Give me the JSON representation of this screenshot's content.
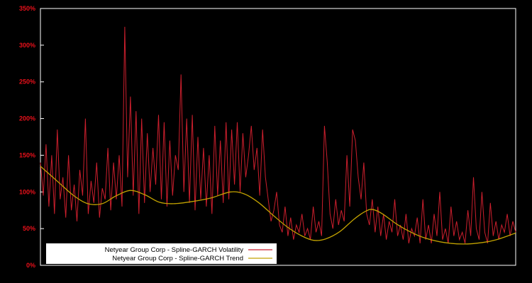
{
  "chart": {
    "background": "#000000",
    "frame_color": "#ffffff",
    "label_color": "#e8101a",
    "legend": {
      "background": "#ffffff",
      "items": [
        {
          "label": "Netyear Group Corp - Spline-GARCH Volatility",
          "color": "#cc1f2d"
        },
        {
          "label": "Netyear Group Corp - Spline-GARCH Trend",
          "color": "#c2a200"
        }
      ]
    }
  },
  "chart_data": {
    "type": "line",
    "title": "",
    "xlabel": "",
    "ylabel": "",
    "ylim": [
      0,
      350
    ],
    "grid": false,
    "legend_position": "bottom-left",
    "yticks": [
      {
        "value": 0,
        "label": "0%"
      },
      {
        "value": 50,
        "label": "50%"
      },
      {
        "value": 100,
        "label": "100%"
      },
      {
        "value": 150,
        "label": "150%"
      },
      {
        "value": 200,
        "label": "200%"
      },
      {
        "value": 250,
        "label": "250%"
      },
      {
        "value": 300,
        "label": "300%"
      },
      {
        "value": 350,
        "label": "350%"
      }
    ],
    "series": [
      {
        "name": "Netyear Group Corp - Spline-GARCH Volatility",
        "color": "#cc1f2d",
        "unit": "%",
        "values": [
          140,
          95,
          165,
          80,
          150,
          70,
          185,
          90,
          120,
          65,
          150,
          75,
          110,
          60,
          130,
          95,
          200,
          70,
          115,
          85,
          140,
          65,
          105,
          90,
          160,
          75,
          140,
          90,
          150,
          80,
          325,
          120,
          230,
          95,
          210,
          70,
          200,
          85,
          180,
          100,
          160,
          110,
          205,
          90,
          195,
          80,
          170,
          95,
          150,
          130,
          260,
          100,
          200,
          85,
          205,
          75,
          175,
          90,
          160,
          80,
          150,
          70,
          190,
          95,
          170,
          85,
          195,
          90,
          185,
          110,
          195,
          100,
          180,
          120,
          150,
          190,
          130,
          160,
          95,
          185,
          120,
          90,
          60,
          75,
          100,
          55,
          45,
          80,
          40,
          65,
          35,
          55,
          45,
          70,
          40,
          50,
          35,
          80,
          45,
          60,
          40,
          190,
          140,
          70,
          50,
          90,
          55,
          75,
          60,
          150,
          80,
          185,
          170,
          120,
          90,
          140,
          70,
          55,
          90,
          45,
          80,
          40,
          70,
          35,
          60,
          45,
          90,
          40,
          55,
          35,
          70,
          30,
          50,
          40,
          65,
          30,
          90,
          35,
          55,
          30,
          70,
          40,
          100,
          35,
          50,
          30,
          80,
          40,
          60,
          35,
          45,
          30,
          75,
          40,
          120,
          50,
          35,
          100,
          45,
          30,
          85,
          40,
          60,
          35,
          55,
          45,
          70,
          40,
          60,
          45
        ]
      },
      {
        "name": "Netyear Group Corp - Spline-GARCH Trend",
        "color": "#c2a200",
        "unit": "%",
        "points": [
          [
            0,
            135
          ],
          [
            0.04,
            112
          ],
          [
            0.07,
            95
          ],
          [
            0.1,
            84
          ],
          [
            0.13,
            84
          ],
          [
            0.16,
            95
          ],
          [
            0.19,
            102
          ],
          [
            0.22,
            96
          ],
          [
            0.25,
            86
          ],
          [
            0.28,
            84
          ],
          [
            0.32,
            87
          ],
          [
            0.36,
            92
          ],
          [
            0.4,
            100
          ],
          [
            0.43,
            97
          ],
          [
            0.46,
            85
          ],
          [
            0.49,
            68
          ],
          [
            0.52,
            52
          ],
          [
            0.55,
            40
          ],
          [
            0.575,
            34
          ],
          [
            0.6,
            36
          ],
          [
            0.63,
            46
          ],
          [
            0.66,
            63
          ],
          [
            0.685,
            74
          ],
          [
            0.7,
            76
          ],
          [
            0.72,
            70
          ],
          [
            0.75,
            56
          ],
          [
            0.78,
            45
          ],
          [
            0.81,
            37
          ],
          [
            0.85,
            31
          ],
          [
            0.89,
            29
          ],
          [
            0.93,
            31
          ],
          [
            0.96,
            35
          ],
          [
            1.0,
            44
          ]
        ]
      }
    ]
  }
}
